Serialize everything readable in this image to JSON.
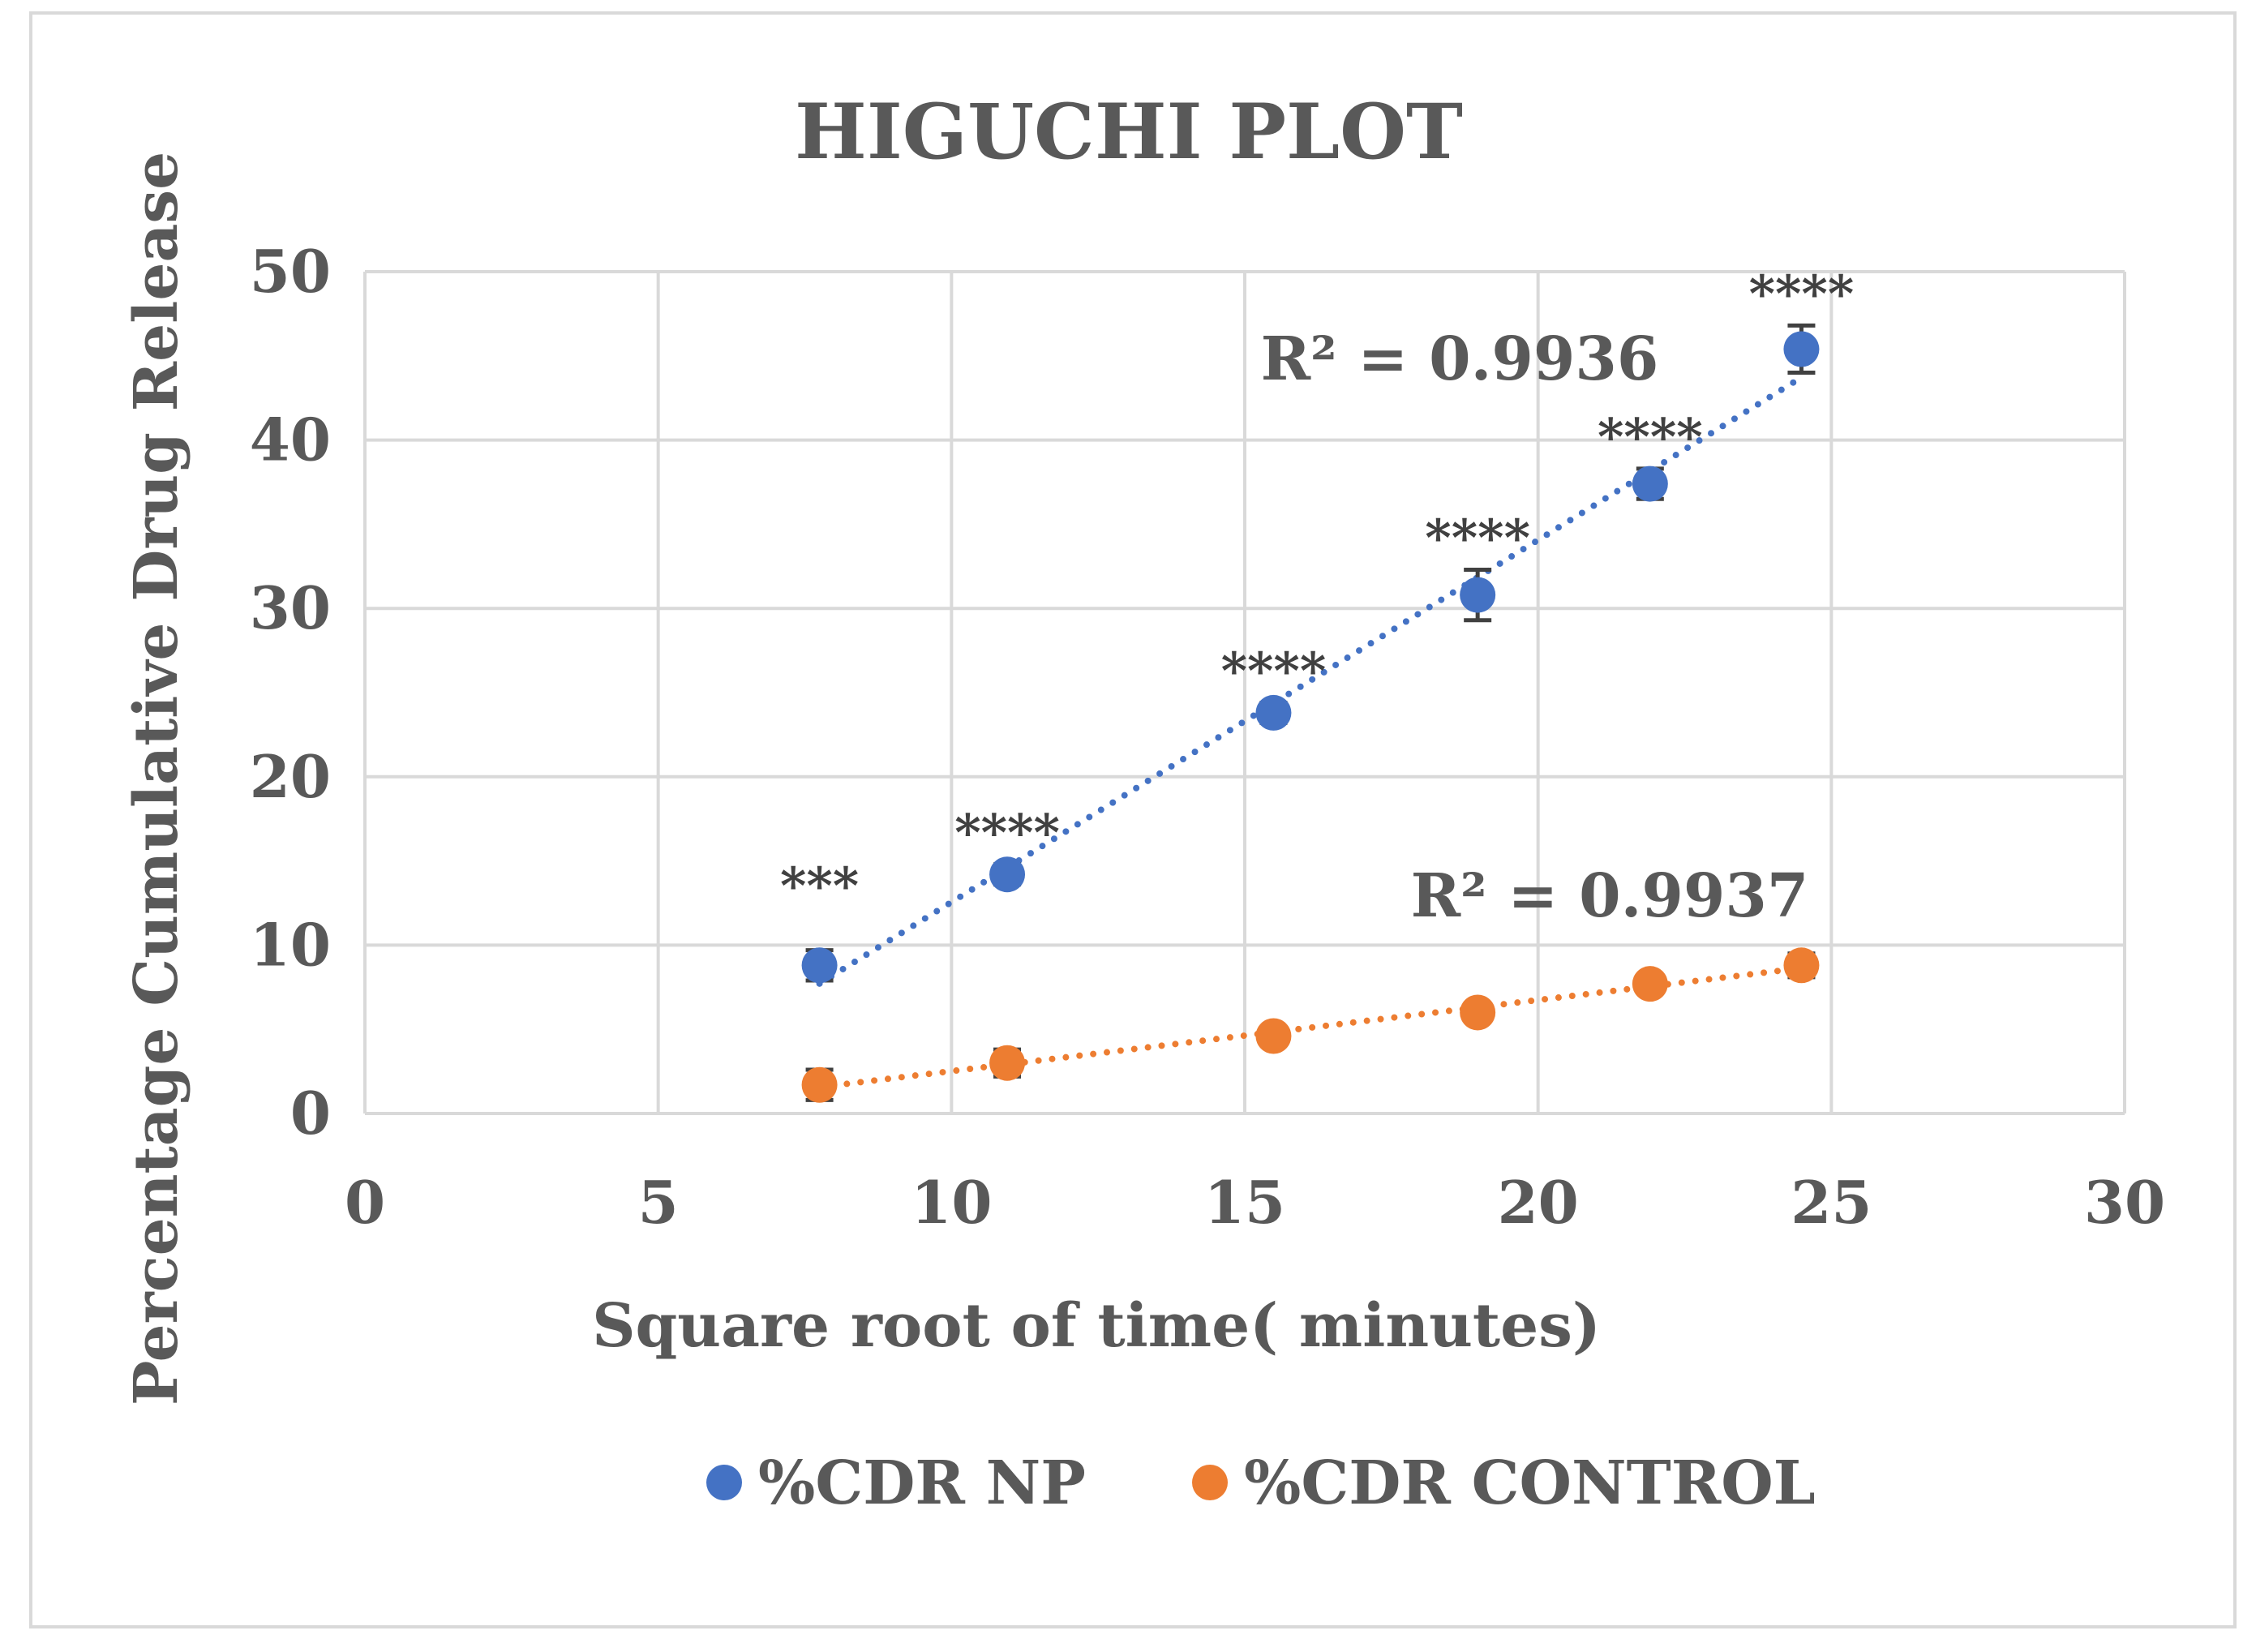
{
  "chart_data": {
    "type": "scatter",
    "title": "HIGUCHI PLOT",
    "xlabel": "Square root of time( minutes)",
    "ylabel": "Percentage Cumulative Drug Release",
    "xlim": [
      0,
      30
    ],
    "ylim": [
      0,
      50
    ],
    "x_ticks": [
      "0",
      "5",
      "10",
      "15",
      "20",
      "25",
      "30"
    ],
    "y_ticks": [
      "0",
      "10",
      "20",
      "30",
      "40",
      "50"
    ],
    "grid": true,
    "legend_position": "bottom",
    "series": [
      {
        "name": "%CDR NP",
        "color": "#4472c4",
        "x": [
          7.75,
          10.95,
          15.49,
          18.97,
          21.91,
          24.49
        ],
        "y": [
          8.8,
          14.2,
          23.8,
          30.8,
          37.4,
          45.4
        ],
        "error": [
          0.9,
          0.6,
          0.6,
          1.5,
          0.9,
          1.4
        ],
        "trendline": "linear",
        "r_squared_label": "R² = 0.9936",
        "significance": [
          "***",
          "****",
          "****",
          "****",
          "****",
          "****"
        ]
      },
      {
        "name": "%CDR CONTROL",
        "color": "#ed7d31",
        "x": [
          7.75,
          10.95,
          15.49,
          18.97,
          21.91,
          24.49
        ],
        "y": [
          1.7,
          3.0,
          4.6,
          6.0,
          7.7,
          8.8
        ],
        "error": [
          0.9,
          0.8,
          0.3,
          0.3,
          0.5,
          0.7
        ],
        "trendline": "linear",
        "r_squared_label": "R² = 0.9937"
      }
    ]
  }
}
